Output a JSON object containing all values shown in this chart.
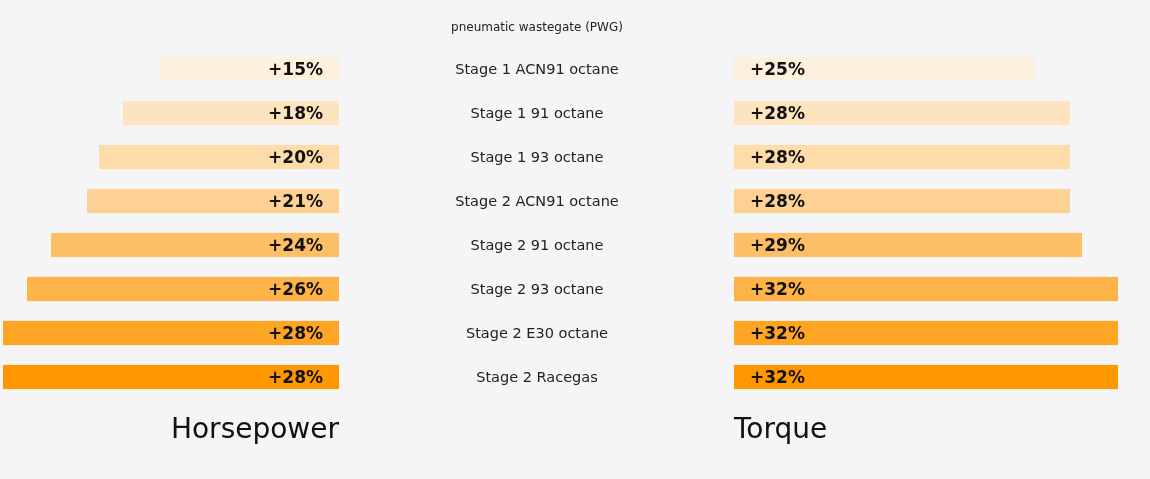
{
  "chart_data": [
    {
      "type": "bar",
      "orientation": "horizontal",
      "title": "pneumatic wastegate (PWG)",
      "xlabel": "Horsepower",
      "categories": [
        "Stage 1 ACN91 octane",
        "Stage 1 91 octane",
        "Stage 1 93 octane",
        "Stage 2 ACN91 octane",
        "Stage 2 91 octane",
        "Stage 2 93 octane",
        "Stage 2 E30 octane",
        "Stage 2 Racegas"
      ],
      "values": [
        15,
        18,
        20,
        21,
        24,
        26,
        28,
        28
      ],
      "value_labels": [
        "+15%",
        "+18%",
        "+20%",
        "+21%",
        "+24%",
        "+26%",
        "+28%",
        "+28%"
      ],
      "colors": [
        "#fdf0dc",
        "#fde4bf",
        "#fddcaa",
        "#fdd193",
        "#fdbf66",
        "#feb347",
        "#fea624",
        "#ff9800"
      ],
      "xlim": [
        28,
        0
      ],
      "tick_labels": "y"
    },
    {
      "type": "bar",
      "orientation": "horizontal",
      "xlabel": "Torque",
      "categories": [
        null,
        null,
        null,
        null,
        null,
        null,
        null,
        null
      ],
      "values": [
        25,
        28,
        28,
        28,
        29,
        32,
        32,
        32
      ],
      "value_labels": [
        "+25%",
        "+28%",
        "+28%",
        "+28%",
        "+29%",
        "+32%",
        "+32%",
        "+32%"
      ],
      "colors": [
        "#fdf0dc",
        "#fde4bf",
        "#fddcaa",
        "#fdd193",
        "#fdbf66",
        "#feb347",
        "#fea624",
        "#ff9800"
      ],
      "xlim": [
        0,
        32
      ],
      "tick_labels": false
    }
  ]
}
